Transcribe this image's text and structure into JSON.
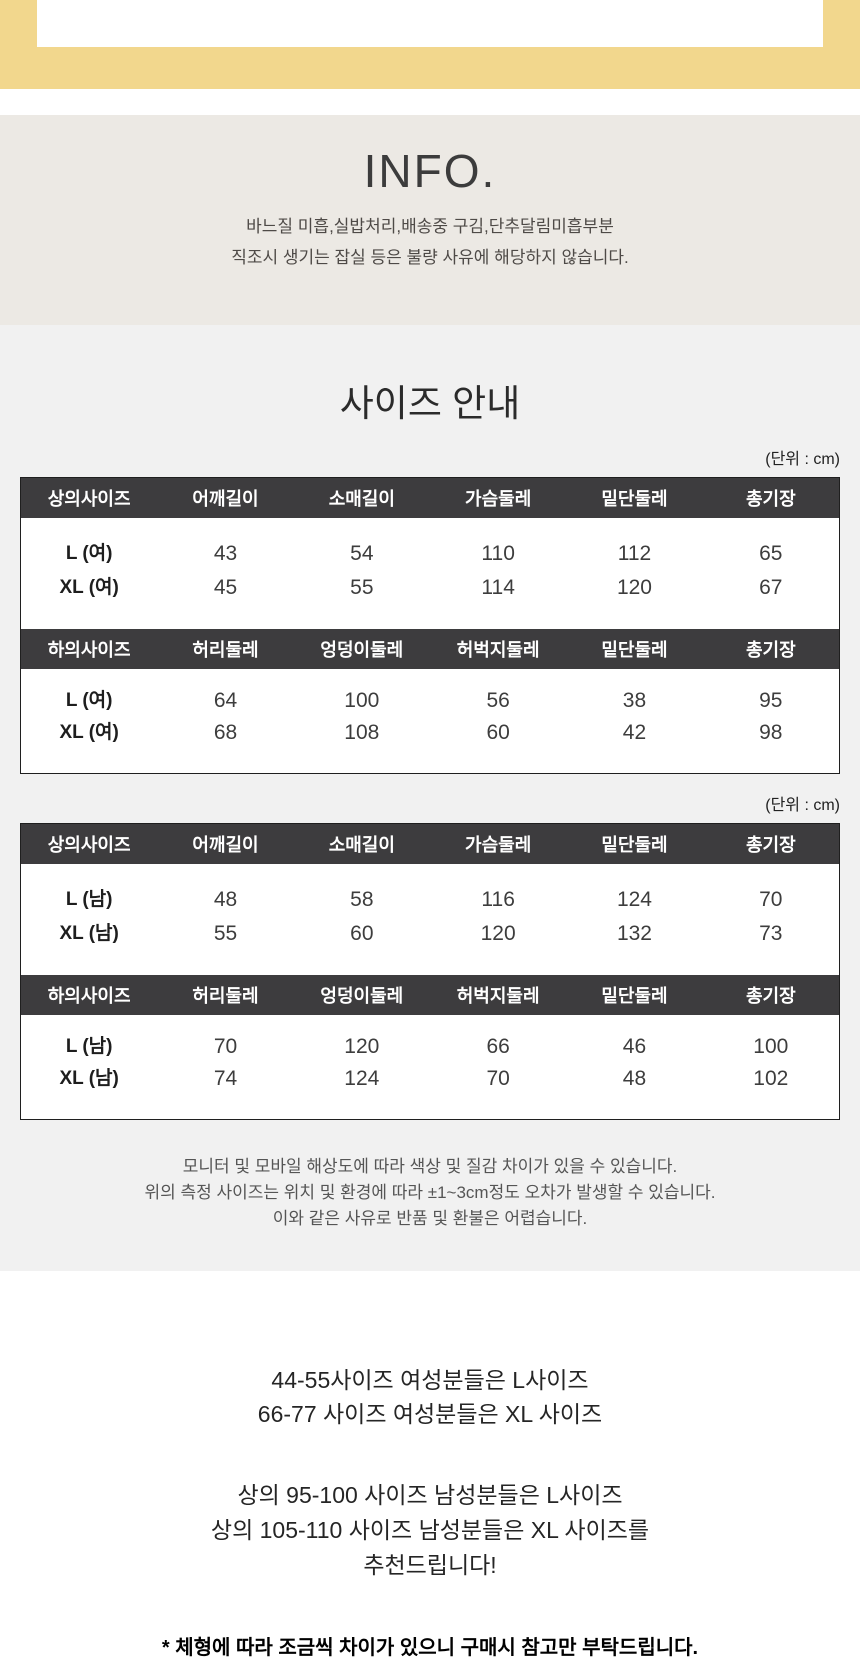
{
  "colors": {
    "banner_yellow": "#F2D78D",
    "info_bg": "#ECE9E4",
    "size_section_bg": "#F1F1F1",
    "table_header_bg": "#3D3C3E",
    "table_border": "#1F1F1F"
  },
  "info": {
    "title": "INFO.",
    "lines": [
      "바느질 미흡,실밥처리,배송중 구김,단추달림미흡부분",
      "직조시 생기는 잡실 등은 불량 사유에 해당하지 않습니다."
    ]
  },
  "size_guide": {
    "title": "사이즈 안내",
    "unit_label": "(단위 : cm)",
    "groups": [
      {
        "name": "women",
        "tables": [
          {
            "headers": [
              "상의사이즈",
              "어깨길이",
              "소매길이",
              "가슴둘레",
              "밑단둘레",
              "총기장"
            ],
            "rows": [
              {
                "label": "L (여)",
                "values": [
                  "43",
                  "54",
                  "110",
                  "112",
                  "65"
                ]
              },
              {
                "label": "XL (여)",
                "values": [
                  "45",
                  "55",
                  "114",
                  "120",
                  "67"
                ]
              }
            ]
          },
          {
            "headers": [
              "하의사이즈",
              "허리둘레",
              "엉덩이둘레",
              "허벅지둘레",
              "밑단둘레",
              "총기장"
            ],
            "rows": [
              {
                "label": "L (여)",
                "values": [
                  "64",
                  "100",
                  "56",
                  "38",
                  "95"
                ]
              },
              {
                "label": "XL (여)",
                "values": [
                  "68",
                  "108",
                  "60",
                  "42",
                  "98"
                ]
              }
            ]
          }
        ]
      },
      {
        "name": "men",
        "tables": [
          {
            "headers": [
              "상의사이즈",
              "어깨길이",
              "소매길이",
              "가슴둘레",
              "밑단둘레",
              "총기장"
            ],
            "rows": [
              {
                "label": "L (남)",
                "values": [
                  "48",
                  "58",
                  "116",
                  "124",
                  "70"
                ]
              },
              {
                "label": "XL (남)",
                "values": [
                  "55",
                  "60",
                  "120",
                  "132",
                  "73"
                ]
              }
            ]
          },
          {
            "headers": [
              "하의사이즈",
              "허리둘레",
              "엉덩이둘레",
              "허벅지둘레",
              "밑단둘레",
              "총기장"
            ],
            "rows": [
              {
                "label": "L (남)",
                "values": [
                  "70",
                  "120",
                  "66",
                  "46",
                  "100"
                ]
              },
              {
                "label": "XL (남)",
                "values": [
                  "74",
                  "124",
                  "70",
                  "48",
                  "102"
                ]
              }
            ]
          }
        ]
      }
    ],
    "notes": [
      "모니터 및 모바일 해상도에 따라 색상 및 질감 차이가 있을 수 있습니다.",
      "위의 측정 사이즈는 위치 및 환경에 따라 ±1~3cm정도 오차가 발생할 수 있습니다.",
      "이와 같은 사유로 반품 및 환불은 어렵습니다."
    ]
  },
  "recommendation": {
    "women_lines": [
      "44-55사이즈 여성분들은 L사이즈",
      "66-77 사이즈 여성분들은 XL 사이즈"
    ],
    "men_lines": [
      "상의 95-100 사이즈 남성분들은 L사이즈",
      "상의 105-110 사이즈 남성분들은 XL 사이즈를",
      "추천드립니다!"
    ],
    "note": "* 체형에 따라 조금씩 차이가 있으니 구매시 참고만 부탁드립니다."
  }
}
